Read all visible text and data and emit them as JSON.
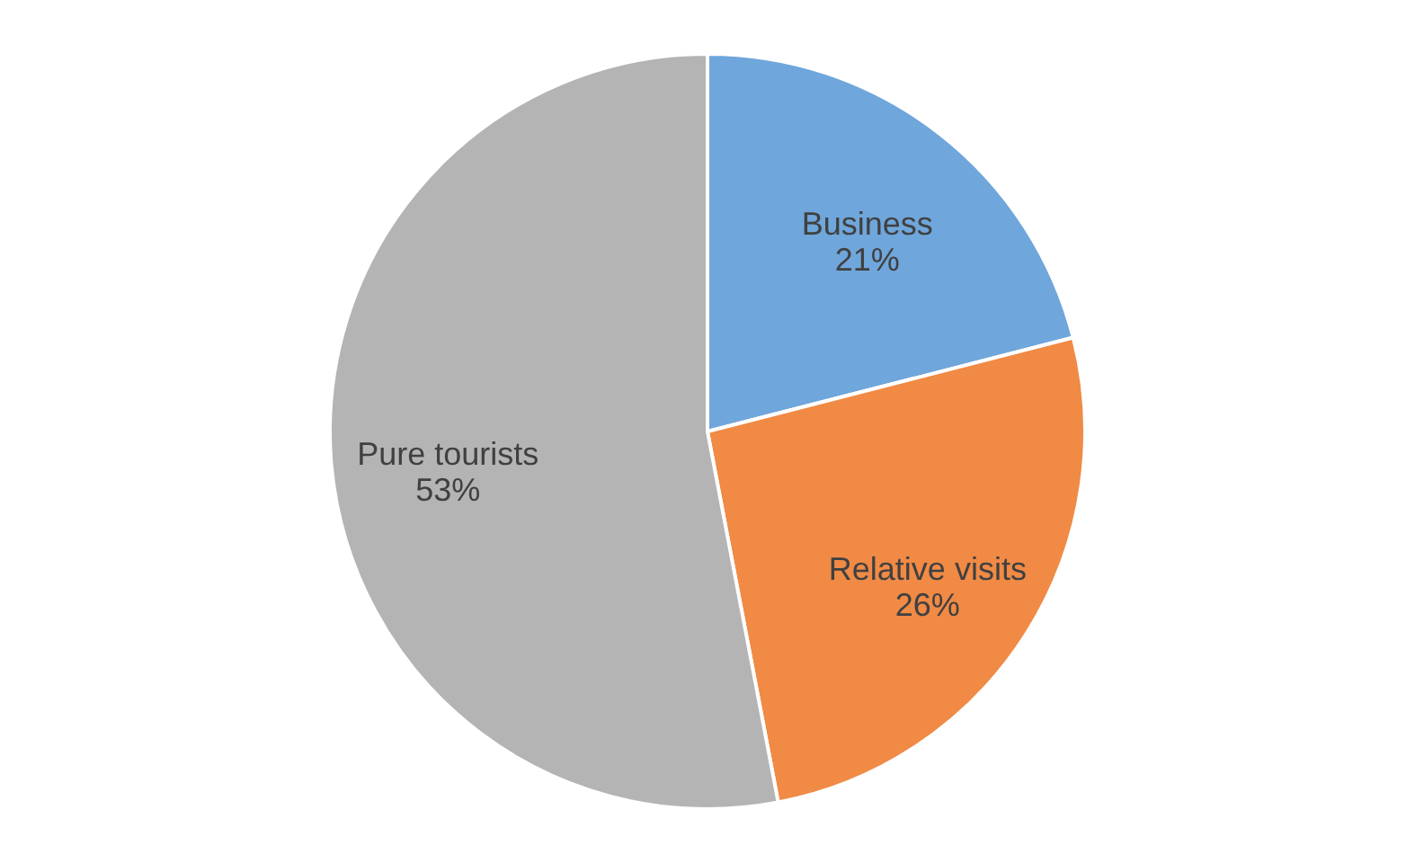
{
  "chart_data": {
    "type": "pie",
    "categories": [
      "Business",
      "Relative visits",
      "Pure tourists"
    ],
    "values": [
      21,
      26,
      53
    ],
    "value_labels": [
      "21%",
      "26%",
      "53%"
    ],
    "colors": [
      "#6fa6db",
      "#f08a45",
      "#b4b4b4"
    ],
    "legend": false
  }
}
